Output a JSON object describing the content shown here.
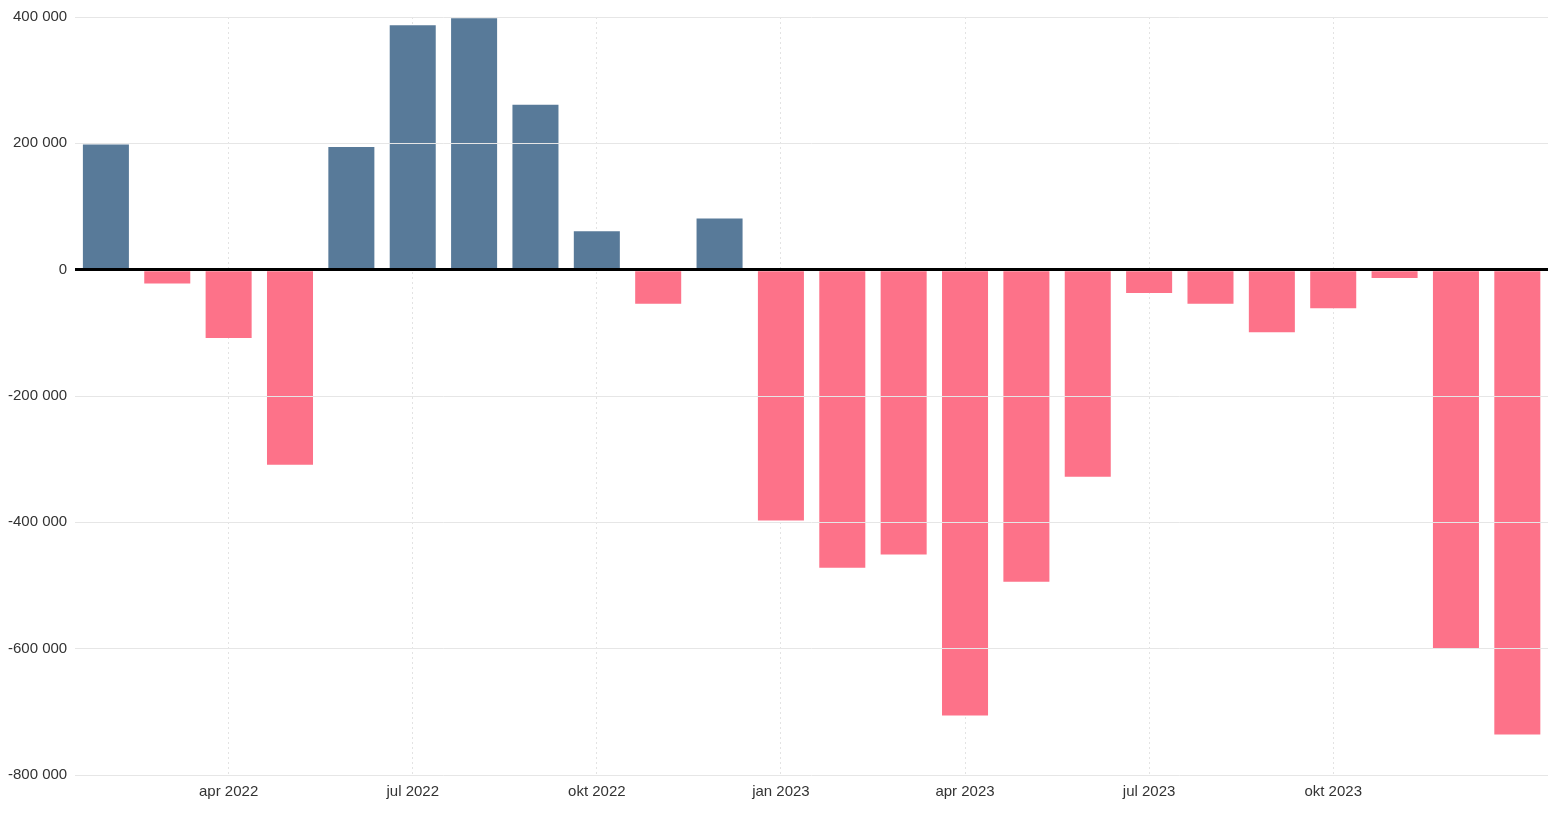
{
  "chart_data": {
    "type": "bar",
    "categories": [
      null,
      null,
      "apr 2022",
      null,
      null,
      "jul 2022",
      null,
      null,
      "okt 2022",
      null,
      null,
      "jan 2023",
      null,
      null,
      "apr 2023",
      null,
      null,
      "jul 2023",
      null,
      null,
      "okt 2023",
      null,
      null,
      null
    ],
    "values": [
      198000,
      -22000,
      -108000,
      -309000,
      194000,
      387000,
      398000,
      261000,
      61000,
      -54000,
      81000,
      -397000,
      -472000,
      -451000,
      -706000,
      -494000,
      -328000,
      -37000,
      -54000,
      -99000,
      -61000,
      -13000,
      -599000,
      -736000
    ],
    "colors": [
      "#587a99",
      "#fd7289",
      "#fd7289",
      "#fd7289",
      "#587a99",
      "#587a99",
      "#587a99",
      "#587a99",
      "#587a99",
      "#fd7289",
      "#587a99",
      "#fd7289",
      "#fd7289",
      "#fd7289",
      "#fd7289",
      "#fd7289",
      "#fd7289",
      "#fd7289",
      "#fd7289",
      "#fd7289",
      "#fd7289",
      "#fd7289",
      "#fd7289",
      "#fd7289"
    ],
    "ylim": [
      -800000,
      400000
    ],
    "yticks": [
      {
        "value": -800000,
        "label": "-800 000"
      },
      {
        "value": -600000,
        "label": "-600 000"
      },
      {
        "value": -400000,
        "label": "-400 000"
      },
      {
        "value": -200000,
        "label": "-200 000"
      },
      0,
      {
        "value": 200000,
        "label": "200 000"
      },
      {
        "value": 400000,
        "label": "400 000"
      }
    ],
    "grid": true
  }
}
